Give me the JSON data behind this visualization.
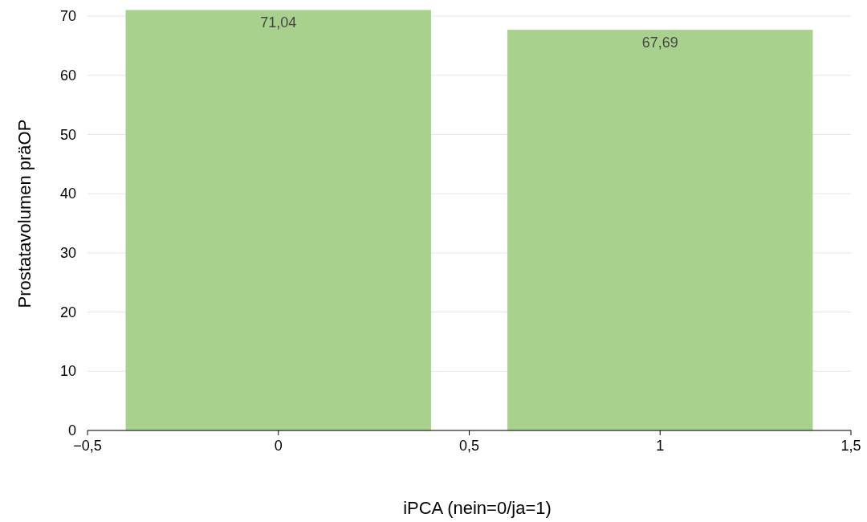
{
  "chart_data": {
    "type": "bar",
    "xlabel": "iPCA (nein=0/ja=1)",
    "ylabel": "Prostatavolumen präOP",
    "x": [
      0,
      1
    ],
    "values": [
      71.04,
      67.69
    ],
    "color": "#a8d18d",
    "value_labels": [
      "71,04",
      "67,69"
    ],
    "xlim": [
      -0.5,
      1.5
    ],
    "xticks": [
      {
        "value": -0.5,
        "label": "−0,5"
      },
      0,
      {
        "value": 0.5,
        "label": "0,5"
      },
      1,
      {
        "value": 1.5,
        "label": "1,5"
      }
    ],
    "ylim": [
      0,
      71.1
    ],
    "yticks": [
      0,
      10,
      20,
      30,
      40,
      50,
      60,
      70
    ],
    "grid": "y"
  }
}
